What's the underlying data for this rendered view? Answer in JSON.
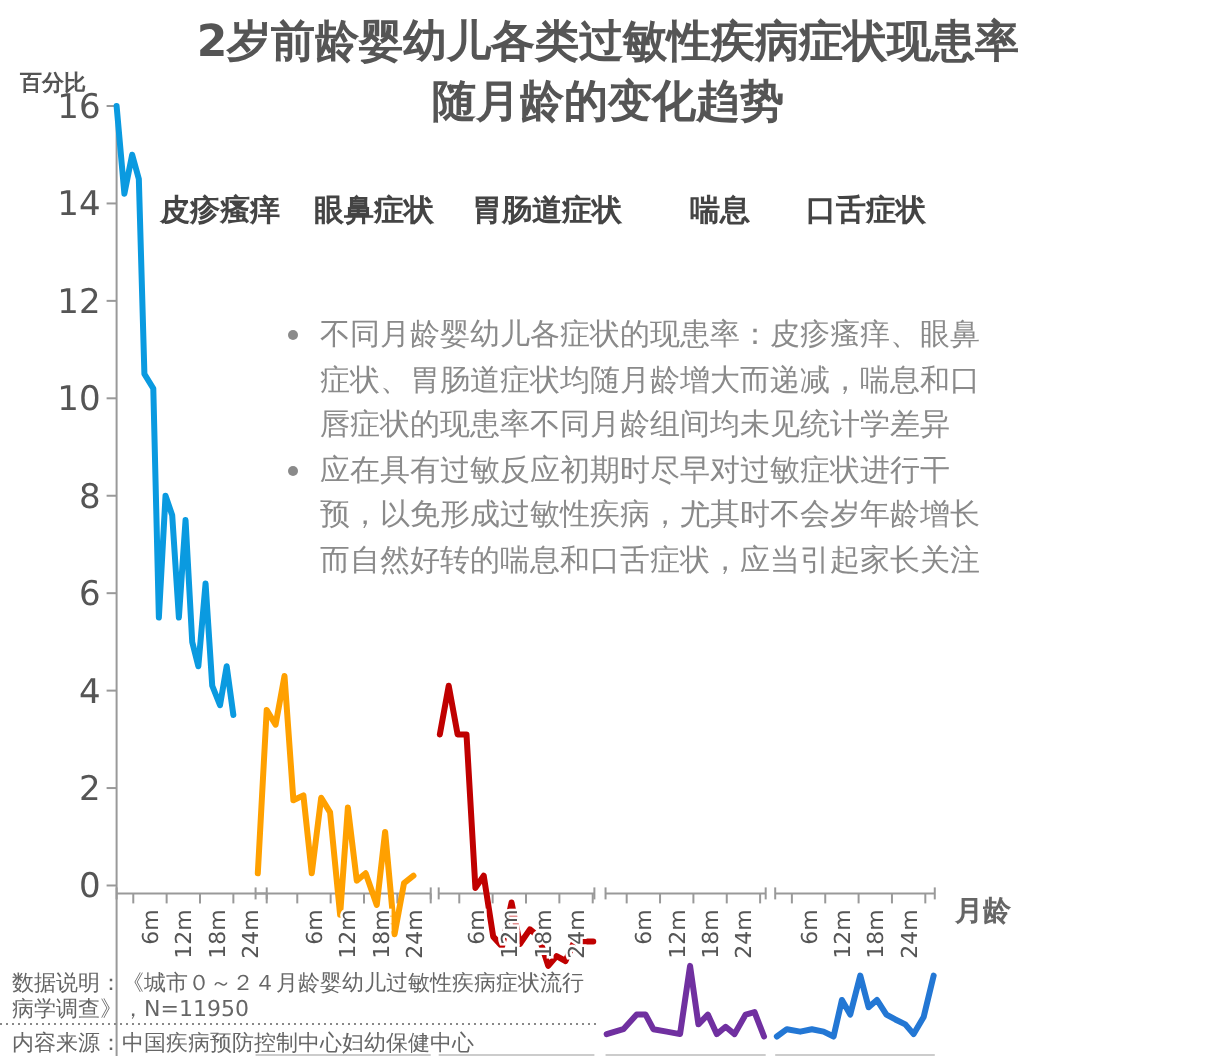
{
  "chart_data": [
    {
      "type": "other",
      "title": "2岁前龄婴幼儿各类过敏性疾病症状现患率",
      "subtitle": "随月龄的变化趋势",
      "annotations": [
        "不同月龄婴幼儿各症状的现患率：皮疹瘙痒、眼鼻症状、胃肠道症状均随月龄增大而递减，喘息和口唇症状的现患率不同月龄组间均未见统计学差异",
        "应在具有过敏反应初期时尽早对过敏症状进行干预，以免形成过敏性疾病，尤其时不会岁年龄增长而自然好转的喘息和口舌症状，应当引起家长关注",
        "数据说明：《城市０～２４月龄婴幼儿过敏性疾病症状流行病学调查》，N=11950",
        "内容来源：中国疾病预防控制中心妇幼保健中心"
      ]
    },
    {
      "type": "line",
      "title": "皮疹瘙痒",
      "ylabel": "百分比",
      "xlim": [
        0,
        27
      ],
      "ylim": [
        -3.5,
        16
      ],
      "yticks": [
        0,
        2,
        4,
        6,
        8,
        10,
        12,
        14,
        16
      ],
      "line_style": "solid",
      "xticks": [
        {
          "value": 3,
          "label": null
        },
        {
          "value": 6,
          "label": "6m"
        },
        {
          "value": 9,
          "label": null
        },
        {
          "value": 12,
          "label": "12m"
        },
        {
          "value": 15,
          "label": null
        },
        {
          "value": 18,
          "label": "18m"
        },
        {
          "value": 21,
          "label": null
        },
        {
          "value": 24,
          "label": "24m"
        },
        {
          "value": 27,
          "label": null
        }
      ],
      "series": [
        {
          "color": "#0a9ae0",
          "x": [
            0,
            1.4,
            2.8,
            4.0,
            5.0,
            6.6,
            7.6,
            8.8,
            10.0,
            11.2,
            12.4,
            13.6,
            14.7,
            16.0,
            17.2,
            18.6,
            19.8,
            21.0
          ],
          "values": [
            16,
            14.2,
            15.0,
            14.5,
            10.5,
            10.2,
            5.5,
            8.0,
            7.6,
            5.5,
            7.5,
            5.0,
            4.5,
            6.2,
            4.1,
            3.7,
            4.5,
            3.5
          ]
        }
      ]
    },
    {
      "type": "line",
      "title": "眼鼻症状",
      "xlim": [
        -4.5,
        27
      ],
      "ylim": [
        -3.5,
        16
      ],
      "tick_labels": "x",
      "line_style": "solid",
      "xticks": [
        {
          "value": 3,
          "label": null
        },
        {
          "value": 6,
          "label": "6m"
        },
        {
          "value": 9,
          "label": null
        },
        {
          "value": 12,
          "label": "12m"
        },
        {
          "value": 15,
          "label": null
        },
        {
          "value": 18,
          "label": "18m"
        },
        {
          "value": 21,
          "label": null
        },
        {
          "value": 24,
          "label": "24m"
        },
        {
          "value": 27,
          "label": null
        }
      ],
      "series": [
        {
          "color": "#ffa000",
          "x": [
            -4.1,
            -2.5,
            -0.9,
            0.7,
            2.3,
            4.1,
            5.6,
            7.3,
            8.9,
            10.7,
            12.1,
            13.7,
            15.3,
            17.3,
            18.8,
            20.5,
            22.2,
            23.9
          ],
          "values": [
            0.25,
            3.6,
            3.3,
            4.3,
            1.75,
            1.85,
            0.25,
            1.8,
            1.5,
            -0.6,
            1.6,
            0.1,
            0.25,
            -0.4,
            1.1,
            -1.0,
            0.05,
            0.2
          ]
        }
      ]
    },
    {
      "type": "line",
      "title": "胃肠道症状",
      "xlim": [
        -0.7,
        27.3
      ],
      "ylim": [
        -3.5,
        16
      ],
      "tick_labels": "x",
      "line_style": "solid",
      "xticks": [
        {
          "value": 3,
          "label": null
        },
        {
          "value": 6,
          "label": "6m"
        },
        {
          "value": 9,
          "label": null
        },
        {
          "value": 12,
          "label": "12m"
        },
        {
          "value": 15,
          "label": null
        },
        {
          "value": 18,
          "label": "18m"
        },
        {
          "value": 21,
          "label": null
        },
        {
          "value": 24,
          "label": "24m"
        },
        {
          "value": 27,
          "label": null
        }
      ],
      "series": [
        {
          "color": "#c00000",
          "x": [
            -0.5,
            1.1,
            2.7,
            4.3,
            5.9,
            7.4,
            9.1,
            10.7,
            12.4,
            13.9,
            15.7,
            17.3,
            19.0,
            20.5,
            22.1,
            23.7,
            27.1
          ],
          "values": [
            3.1,
            4.1,
            3.1,
            3.1,
            -0.05,
            0.2,
            -1.05,
            -1.25,
            -0.35,
            -1.2,
            -0.9,
            -1.05,
            -1.65,
            -1.45,
            -1.55,
            -1.15,
            -1.15
          ]
        }
      ]
    },
    {
      "type": "line",
      "title": "喘息",
      "xlim": [
        -0.8,
        28
      ],
      "ylim": [
        -3.5,
        16
      ],
      "tick_labels": "x",
      "line_style": "solid",
      "xticks": [
        {
          "value": 3,
          "label": null
        },
        {
          "value": 6,
          "label": "6m"
        },
        {
          "value": 9,
          "label": null
        },
        {
          "value": 12,
          "label": "12m"
        },
        {
          "value": 15,
          "label": null
        },
        {
          "value": 18,
          "label": "18m"
        },
        {
          "value": 21,
          "label": null
        },
        {
          "value": 24,
          "label": "24m"
        },
        {
          "value": 27,
          "label": null
        }
      ],
      "series": [
        {
          "color": "#7030a0",
          "x": [
            -0.6,
            2.4,
            4.8,
            6.4,
            7.8,
            10.2,
            12.6,
            14.4,
            15.9,
            17.6,
            19.2,
            20.8,
            22.4,
            24.4,
            26.0,
            27.7
          ],
          "values": [
            -3.05,
            -2.95,
            -2.65,
            -2.65,
            -2.95,
            -3.0,
            -3.05,
            -1.65,
            -2.85,
            -2.65,
            -3.05,
            -2.9,
            -3.05,
            -2.65,
            -2.6,
            -3.1
          ]
        }
      ]
    },
    {
      "type": "line",
      "title": "口舌症状",
      "xlabel": "月龄",
      "xlim": [
        0,
        28.7
      ],
      "ylim": [
        -3.5,
        16
      ],
      "tick_labels": "x",
      "line_style": "solid",
      "xticks": [
        {
          "value": 3,
          "label": null
        },
        {
          "value": 6,
          "label": "6m"
        },
        {
          "value": 9,
          "label": null
        },
        {
          "value": 12,
          "label": "12m"
        },
        {
          "value": 15,
          "label": null
        },
        {
          "value": 18,
          "label": "18m"
        },
        {
          "value": 21,
          "label": null
        },
        {
          "value": 24,
          "label": "24m"
        },
        {
          "value": 27,
          "label": null
        }
      ],
      "series": [
        {
          "color": "#2377d4",
          "x": [
            0.3,
            2.1,
            4.5,
            6.6,
            8.7,
            10.5,
            12.0,
            13.5,
            15.3,
            16.8,
            18.3,
            20.0,
            21.6,
            23.4,
            24.9,
            26.7,
            28.5
          ],
          "values": [
            -3.1,
            -2.95,
            -3.0,
            -2.95,
            -3.0,
            -3.1,
            -2.35,
            -2.65,
            -1.85,
            -2.5,
            -2.35,
            -2.65,
            -2.75,
            -2.85,
            -3.05,
            -2.7,
            -1.85
          ]
        }
      ]
    }
  ]
}
